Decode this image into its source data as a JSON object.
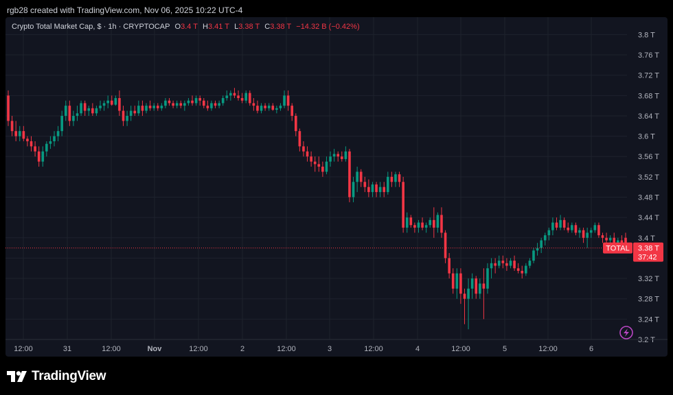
{
  "header": {
    "attribution": "rgb28 created with TradingView.com, Nov 06, 2025 10:22 UTC-4"
  },
  "legend": {
    "title": "Crypto Total Market Cap, $ · 1h · CRYPTOCAP",
    "o_label": "O",
    "o_value": "3.4 T",
    "h_label": "H",
    "h_value": "3.41 T",
    "l_label": "L",
    "l_value": "3.38 T",
    "c_label": "C",
    "c_value": "3.38 T",
    "change": "−14.32 B (−0.42%)"
  },
  "footer": {
    "brand": "TradingView"
  },
  "colors": {
    "up": "#089981",
    "down": "#f23645",
    "background": "#121520",
    "text": "#b2b5be"
  },
  "chart_data": {
    "type": "candlestick",
    "symbol": "TOTAL",
    "ylabel_unit": "T",
    "ylim": [
      3.18,
      3.82
    ],
    "grid": true,
    "y_ticks": [
      "3.8 T",
      "3.76 T",
      "3.72 T",
      "3.68 T",
      "3.64 T",
      "3.6 T",
      "3.56 T",
      "3.52 T",
      "3.48 T",
      "3.44 T",
      "3.4 T",
      "3.36 T",
      "3.32 T",
      "3.28 T",
      "3.24 T",
      "3.2 T"
    ],
    "x_ticks": [
      "12:00",
      "31",
      "12:00",
      "Nov",
      "12:00",
      "2",
      "12:00",
      "3",
      "12:00",
      "4",
      "12:00",
      "5",
      "12:00",
      "6"
    ],
    "last_price_label": "TOTAL",
    "last_price": "3.38 T",
    "countdown": "37:42",
    "last_value": 3.38,
    "series": [
      {
        "o": 3.68,
        "h": 3.69,
        "l": 3.62,
        "c": 3.63
      },
      {
        "o": 3.63,
        "h": 3.64,
        "l": 3.6,
        "c": 3.61
      },
      {
        "o": 3.61,
        "h": 3.63,
        "l": 3.59,
        "c": 3.6
      },
      {
        "o": 3.6,
        "h": 3.62,
        "l": 3.59,
        "c": 3.61
      },
      {
        "o": 3.61,
        "h": 3.62,
        "l": 3.59,
        "c": 3.595
      },
      {
        "o": 3.595,
        "h": 3.6,
        "l": 3.58,
        "c": 3.59
      },
      {
        "o": 3.59,
        "h": 3.6,
        "l": 3.57,
        "c": 3.58
      },
      {
        "o": 3.58,
        "h": 3.59,
        "l": 3.56,
        "c": 3.57
      },
      {
        "o": 3.57,
        "h": 3.58,
        "l": 3.54,
        "c": 3.55
      },
      {
        "o": 3.55,
        "h": 3.58,
        "l": 3.54,
        "c": 3.57
      },
      {
        "o": 3.57,
        "h": 3.59,
        "l": 3.56,
        "c": 3.585
      },
      {
        "o": 3.585,
        "h": 3.6,
        "l": 3.575,
        "c": 3.59
      },
      {
        "o": 3.59,
        "h": 3.61,
        "l": 3.58,
        "c": 3.6
      },
      {
        "o": 3.6,
        "h": 3.62,
        "l": 3.59,
        "c": 3.61
      },
      {
        "o": 3.61,
        "h": 3.65,
        "l": 3.6,
        "c": 3.64
      },
      {
        "o": 3.64,
        "h": 3.67,
        "l": 3.63,
        "c": 3.66
      },
      {
        "o": 3.66,
        "h": 3.67,
        "l": 3.62,
        "c": 3.63
      },
      {
        "o": 3.63,
        "h": 3.65,
        "l": 3.62,
        "c": 3.64
      },
      {
        "o": 3.64,
        "h": 3.66,
        "l": 3.63,
        "c": 3.645
      },
      {
        "o": 3.645,
        "h": 3.67,
        "l": 3.64,
        "c": 3.665
      },
      {
        "o": 3.665,
        "h": 3.67,
        "l": 3.64,
        "c": 3.65
      },
      {
        "o": 3.65,
        "h": 3.66,
        "l": 3.64,
        "c": 3.655
      },
      {
        "o": 3.655,
        "h": 3.665,
        "l": 3.64,
        "c": 3.645
      },
      {
        "o": 3.645,
        "h": 3.66,
        "l": 3.64,
        "c": 3.655
      },
      {
        "o": 3.655,
        "h": 3.67,
        "l": 3.65,
        "c": 3.66
      },
      {
        "o": 3.66,
        "h": 3.67,
        "l": 3.65,
        "c": 3.665
      },
      {
        "o": 3.665,
        "h": 3.68,
        "l": 3.655,
        "c": 3.67
      },
      {
        "o": 3.67,
        "h": 3.68,
        "l": 3.66,
        "c": 3.662
      },
      {
        "o": 3.662,
        "h": 3.68,
        "l": 3.66,
        "c": 3.675
      },
      {
        "o": 3.675,
        "h": 3.69,
        "l": 3.64,
        "c": 3.65
      },
      {
        "o": 3.65,
        "h": 3.66,
        "l": 3.62,
        "c": 3.63
      },
      {
        "o": 3.63,
        "h": 3.65,
        "l": 3.62,
        "c": 3.64
      },
      {
        "o": 3.64,
        "h": 3.66,
        "l": 3.63,
        "c": 3.65
      },
      {
        "o": 3.65,
        "h": 3.66,
        "l": 3.64,
        "c": 3.645
      },
      {
        "o": 3.645,
        "h": 3.67,
        "l": 3.64,
        "c": 3.66
      },
      {
        "o": 3.66,
        "h": 3.67,
        "l": 3.64,
        "c": 3.65
      },
      {
        "o": 3.65,
        "h": 3.665,
        "l": 3.645,
        "c": 3.66
      },
      {
        "o": 3.66,
        "h": 3.67,
        "l": 3.65,
        "c": 3.655
      },
      {
        "o": 3.655,
        "h": 3.665,
        "l": 3.65,
        "c": 3.66
      },
      {
        "o": 3.66,
        "h": 3.665,
        "l": 3.65,
        "c": 3.655
      },
      {
        "o": 3.655,
        "h": 3.665,
        "l": 3.65,
        "c": 3.66
      },
      {
        "o": 3.66,
        "h": 3.675,
        "l": 3.655,
        "c": 3.67
      },
      {
        "o": 3.67,
        "h": 3.675,
        "l": 3.66,
        "c": 3.665
      },
      {
        "o": 3.665,
        "h": 3.67,
        "l": 3.655,
        "c": 3.66
      },
      {
        "o": 3.66,
        "h": 3.67,
        "l": 3.655,
        "c": 3.665
      },
      {
        "o": 3.665,
        "h": 3.67,
        "l": 3.655,
        "c": 3.66
      },
      {
        "o": 3.66,
        "h": 3.67,
        "l": 3.65,
        "c": 3.665
      },
      {
        "o": 3.665,
        "h": 3.675,
        "l": 3.66,
        "c": 3.67
      },
      {
        "o": 3.67,
        "h": 3.68,
        "l": 3.66,
        "c": 3.665
      },
      {
        "o": 3.665,
        "h": 3.68,
        "l": 3.66,
        "c": 3.675
      },
      {
        "o": 3.675,
        "h": 3.68,
        "l": 3.66,
        "c": 3.67
      },
      {
        "o": 3.67,
        "h": 3.675,
        "l": 3.655,
        "c": 3.66
      },
      {
        "o": 3.66,
        "h": 3.67,
        "l": 3.65,
        "c": 3.655
      },
      {
        "o": 3.655,
        "h": 3.67,
        "l": 3.65,
        "c": 3.665
      },
      {
        "o": 3.665,
        "h": 3.67,
        "l": 3.655,
        "c": 3.66
      },
      {
        "o": 3.66,
        "h": 3.67,
        "l": 3.655,
        "c": 3.665
      },
      {
        "o": 3.665,
        "h": 3.68,
        "l": 3.66,
        "c": 3.675
      },
      {
        "o": 3.675,
        "h": 3.69,
        "l": 3.67,
        "c": 3.68
      },
      {
        "o": 3.68,
        "h": 3.69,
        "l": 3.67,
        "c": 3.685
      },
      {
        "o": 3.685,
        "h": 3.695,
        "l": 3.675,
        "c": 3.68
      },
      {
        "o": 3.68,
        "h": 3.69,
        "l": 3.67,
        "c": 3.675
      },
      {
        "o": 3.675,
        "h": 3.685,
        "l": 3.665,
        "c": 3.67
      },
      {
        "o": 3.67,
        "h": 3.69,
        "l": 3.665,
        "c": 3.685
      },
      {
        "o": 3.685,
        "h": 3.69,
        "l": 3.66,
        "c": 3.665
      },
      {
        "o": 3.665,
        "h": 3.675,
        "l": 3.65,
        "c": 3.66
      },
      {
        "o": 3.66,
        "h": 3.67,
        "l": 3.645,
        "c": 3.65
      },
      {
        "o": 3.65,
        "h": 3.665,
        "l": 3.645,
        "c": 3.66
      },
      {
        "o": 3.66,
        "h": 3.665,
        "l": 3.65,
        "c": 3.655
      },
      {
        "o": 3.655,
        "h": 3.665,
        "l": 3.65,
        "c": 3.66
      },
      {
        "o": 3.66,
        "h": 3.665,
        "l": 3.65,
        "c": 3.652
      },
      {
        "o": 3.652,
        "h": 3.66,
        "l": 3.645,
        "c": 3.655
      },
      {
        "o": 3.655,
        "h": 3.665,
        "l": 3.65,
        "c": 3.66
      },
      {
        "o": 3.66,
        "h": 3.69,
        "l": 3.655,
        "c": 3.68
      },
      {
        "o": 3.68,
        "h": 3.69,
        "l": 3.65,
        "c": 3.66
      },
      {
        "o": 3.66,
        "h": 3.665,
        "l": 3.63,
        "c": 3.64
      },
      {
        "o": 3.64,
        "h": 3.645,
        "l": 3.6,
        "c": 3.61
      },
      {
        "o": 3.61,
        "h": 3.615,
        "l": 3.57,
        "c": 3.58
      },
      {
        "o": 3.58,
        "h": 3.59,
        "l": 3.56,
        "c": 3.57
      },
      {
        "o": 3.57,
        "h": 3.58,
        "l": 3.55,
        "c": 3.56
      },
      {
        "o": 3.56,
        "h": 3.57,
        "l": 3.54,
        "c": 3.55
      },
      {
        "o": 3.55,
        "h": 3.56,
        "l": 3.53,
        "c": 3.545
      },
      {
        "o": 3.545,
        "h": 3.56,
        "l": 3.53,
        "c": 3.54
      },
      {
        "o": 3.54,
        "h": 3.55,
        "l": 3.52,
        "c": 3.53
      },
      {
        "o": 3.53,
        "h": 3.56,
        "l": 3.525,
        "c": 3.55
      },
      {
        "o": 3.55,
        "h": 3.57,
        "l": 3.54,
        "c": 3.56
      },
      {
        "o": 3.56,
        "h": 3.575,
        "l": 3.55,
        "c": 3.565
      },
      {
        "o": 3.565,
        "h": 3.57,
        "l": 3.55,
        "c": 3.56
      },
      {
        "o": 3.56,
        "h": 3.57,
        "l": 3.55,
        "c": 3.555
      },
      {
        "o": 3.555,
        "h": 3.58,
        "l": 3.55,
        "c": 3.57
      },
      {
        "o": 3.57,
        "h": 3.575,
        "l": 3.47,
        "c": 3.48
      },
      {
        "o": 3.48,
        "h": 3.52,
        "l": 3.47,
        "c": 3.51
      },
      {
        "o": 3.51,
        "h": 3.54,
        "l": 3.49,
        "c": 3.53
      },
      {
        "o": 3.53,
        "h": 3.535,
        "l": 3.5,
        "c": 3.51
      },
      {
        "o": 3.51,
        "h": 3.52,
        "l": 3.49,
        "c": 3.5
      },
      {
        "o": 3.5,
        "h": 3.515,
        "l": 3.48,
        "c": 3.49
      },
      {
        "o": 3.49,
        "h": 3.51,
        "l": 3.48,
        "c": 3.505
      },
      {
        "o": 3.505,
        "h": 3.51,
        "l": 3.48,
        "c": 3.49
      },
      {
        "o": 3.49,
        "h": 3.51,
        "l": 3.48,
        "c": 3.5
      },
      {
        "o": 3.5,
        "h": 3.51,
        "l": 3.48,
        "c": 3.49
      },
      {
        "o": 3.49,
        "h": 3.53,
        "l": 3.485,
        "c": 3.52
      },
      {
        "o": 3.52,
        "h": 3.53,
        "l": 3.5,
        "c": 3.51
      },
      {
        "o": 3.51,
        "h": 3.53,
        "l": 3.5,
        "c": 3.525
      },
      {
        "o": 3.525,
        "h": 3.53,
        "l": 3.5,
        "c": 3.51
      },
      {
        "o": 3.51,
        "h": 3.52,
        "l": 3.41,
        "c": 3.42
      },
      {
        "o": 3.42,
        "h": 3.45,
        "l": 3.41,
        "c": 3.44
      },
      {
        "o": 3.44,
        "h": 3.445,
        "l": 3.42,
        "c": 3.425
      },
      {
        "o": 3.425,
        "h": 3.43,
        "l": 3.41,
        "c": 3.42
      },
      {
        "o": 3.42,
        "h": 3.435,
        "l": 3.41,
        "c": 3.43
      },
      {
        "o": 3.43,
        "h": 3.44,
        "l": 3.415,
        "c": 3.42
      },
      {
        "o": 3.42,
        "h": 3.43,
        "l": 3.41,
        "c": 3.425
      },
      {
        "o": 3.425,
        "h": 3.44,
        "l": 3.42,
        "c": 3.435
      },
      {
        "o": 3.435,
        "h": 3.46,
        "l": 3.4,
        "c": 3.42
      },
      {
        "o": 3.42,
        "h": 3.45,
        "l": 3.41,
        "c": 3.445
      },
      {
        "o": 3.445,
        "h": 3.46,
        "l": 3.4,
        "c": 3.41
      },
      {
        "o": 3.41,
        "h": 3.415,
        "l": 3.35,
        "c": 3.36
      },
      {
        "o": 3.36,
        "h": 3.37,
        "l": 3.32,
        "c": 3.33
      },
      {
        "o": 3.33,
        "h": 3.34,
        "l": 3.29,
        "c": 3.3
      },
      {
        "o": 3.3,
        "h": 3.34,
        "l": 3.28,
        "c": 3.33
      },
      {
        "o": 3.33,
        "h": 3.34,
        "l": 3.27,
        "c": 3.29
      },
      {
        "o": 3.29,
        "h": 3.3,
        "l": 3.23,
        "c": 3.28
      },
      {
        "o": 3.28,
        "h": 3.32,
        "l": 3.22,
        "c": 3.3
      },
      {
        "o": 3.3,
        "h": 3.33,
        "l": 3.28,
        "c": 3.32
      },
      {
        "o": 3.32,
        "h": 3.325,
        "l": 3.28,
        "c": 3.29
      },
      {
        "o": 3.29,
        "h": 3.32,
        "l": 3.28,
        "c": 3.31
      },
      {
        "o": 3.31,
        "h": 3.34,
        "l": 3.24,
        "c": 3.3
      },
      {
        "o": 3.3,
        "h": 3.35,
        "l": 3.29,
        "c": 3.34
      },
      {
        "o": 3.34,
        "h": 3.36,
        "l": 3.32,
        "c": 3.35
      },
      {
        "o": 3.35,
        "h": 3.36,
        "l": 3.33,
        "c": 3.345
      },
      {
        "o": 3.345,
        "h": 3.365,
        "l": 3.34,
        "c": 3.355
      },
      {
        "o": 3.355,
        "h": 3.365,
        "l": 3.34,
        "c": 3.35
      },
      {
        "o": 3.35,
        "h": 3.36,
        "l": 3.335,
        "c": 3.345
      },
      {
        "o": 3.345,
        "h": 3.36,
        "l": 3.34,
        "c": 3.355
      },
      {
        "o": 3.355,
        "h": 3.365,
        "l": 3.335,
        "c": 3.34
      },
      {
        "o": 3.34,
        "h": 3.35,
        "l": 3.33,
        "c": 3.335
      },
      {
        "o": 3.335,
        "h": 3.345,
        "l": 3.32,
        "c": 3.33
      },
      {
        "o": 3.33,
        "h": 3.35,
        "l": 3.325,
        "c": 3.345
      },
      {
        "o": 3.345,
        "h": 3.36,
        "l": 3.34,
        "c": 3.355
      },
      {
        "o": 3.355,
        "h": 3.38,
        "l": 3.35,
        "c": 3.375
      },
      {
        "o": 3.375,
        "h": 3.39,
        "l": 3.365,
        "c": 3.38
      },
      {
        "o": 3.38,
        "h": 3.4,
        "l": 3.37,
        "c": 3.395
      },
      {
        "o": 3.395,
        "h": 3.41,
        "l": 3.385,
        "c": 3.405
      },
      {
        "o": 3.405,
        "h": 3.42,
        "l": 3.395,
        "c": 3.415
      },
      {
        "o": 3.415,
        "h": 3.44,
        "l": 3.405,
        "c": 3.43
      },
      {
        "o": 3.43,
        "h": 3.44,
        "l": 3.415,
        "c": 3.42
      },
      {
        "o": 3.42,
        "h": 3.445,
        "l": 3.415,
        "c": 3.435
      },
      {
        "o": 3.435,
        "h": 3.44,
        "l": 3.415,
        "c": 3.42
      },
      {
        "o": 3.42,
        "h": 3.43,
        "l": 3.41,
        "c": 3.415
      },
      {
        "o": 3.415,
        "h": 3.43,
        "l": 3.41,
        "c": 3.425
      },
      {
        "o": 3.425,
        "h": 3.43,
        "l": 3.405,
        "c": 3.41
      },
      {
        "o": 3.41,
        "h": 3.42,
        "l": 3.4,
        "c": 3.415
      },
      {
        "o": 3.415,
        "h": 3.42,
        "l": 3.39,
        "c": 3.4
      },
      {
        "o": 3.4,
        "h": 3.42,
        "l": 3.38,
        "c": 3.41
      },
      {
        "o": 3.41,
        "h": 3.42,
        "l": 3.4,
        "c": 3.415
      },
      {
        "o": 3.415,
        "h": 3.43,
        "l": 3.41,
        "c": 3.425
      },
      {
        "o": 3.425,
        "h": 3.43,
        "l": 3.4,
        "c": 3.405
      },
      {
        "o": 3.405,
        "h": 3.41,
        "l": 3.39,
        "c": 3.4
      },
      {
        "o": 3.4,
        "h": 3.41,
        "l": 3.385,
        "c": 3.395
      },
      {
        "o": 3.395,
        "h": 3.405,
        "l": 3.38,
        "c": 3.4
      },
      {
        "o": 3.4,
        "h": 3.41,
        "l": 3.375,
        "c": 3.385
      },
      {
        "o": 3.385,
        "h": 3.4,
        "l": 3.38,
        "c": 3.395
      },
      {
        "o": 3.395,
        "h": 3.405,
        "l": 3.38,
        "c": 3.39
      },
      {
        "o": 3.4,
        "h": 3.41,
        "l": 3.38,
        "c": 3.38
      }
    ]
  }
}
